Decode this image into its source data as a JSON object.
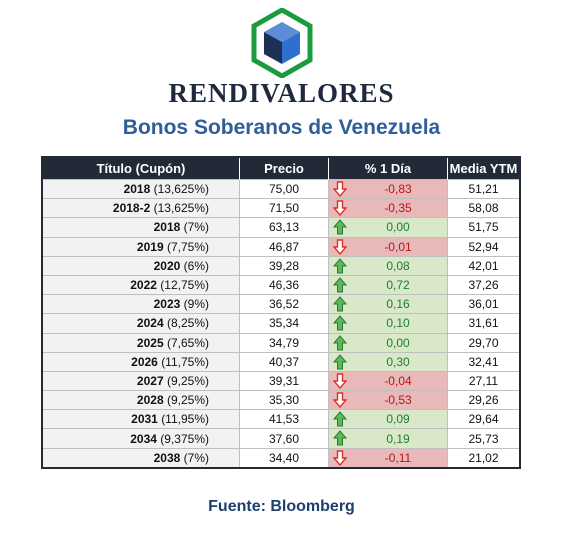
{
  "brand": "RENDIVALORES",
  "title": "Bonos Soberanos de Venezuela",
  "source": "Fuente: Bloomberg",
  "colors": {
    "header_bg": "#222a38",
    "title": "#2e5f99",
    "positive_bg": "#d8e8c8",
    "positive_text": "#1e7d32",
    "negative_bg": "#e9b9b9",
    "negative_text": "#b01919"
  },
  "icons": {
    "logo": "cube-hexagon-logo",
    "up": "arrow-up-icon",
    "down": "arrow-down-icon"
  },
  "table": {
    "headers": [
      "Título (Cupón)",
      "Precio",
      "% 1 Día",
      "Media YTM"
    ],
    "rows": [
      {
        "year": "2018",
        "coupon": "(13,625%)",
        "precio": "75,00",
        "cambio": "-0,83",
        "dir": "down",
        "ytm": "51,21"
      },
      {
        "year": "2018-2",
        "coupon": "(13,625%)",
        "precio": "71,50",
        "cambio": "-0,35",
        "dir": "down",
        "ytm": "58,08"
      },
      {
        "year": "2018",
        "coupon": "(7%)",
        "precio": "63,13",
        "cambio": "0,00",
        "dir": "up",
        "ytm": "51,75"
      },
      {
        "year": "2019",
        "coupon": "(7,75%)",
        "precio": "46,87",
        "cambio": "-0,01",
        "dir": "down",
        "ytm": "52,94"
      },
      {
        "year": "2020",
        "coupon": "(6%)",
        "precio": "39,28",
        "cambio": "0,08",
        "dir": "up",
        "ytm": "42,01"
      },
      {
        "year": "2022",
        "coupon": "(12,75%)",
        "precio": "46,36",
        "cambio": "0,72",
        "dir": "up",
        "ytm": "37,26"
      },
      {
        "year": "2023",
        "coupon": "(9%)",
        "precio": "36,52",
        "cambio": "0,16",
        "dir": "up",
        "ytm": "36,01"
      },
      {
        "year": "2024",
        "coupon": "(8,25%)",
        "precio": "35,34",
        "cambio": "0,10",
        "dir": "up",
        "ytm": "31,61"
      },
      {
        "year": "2025",
        "coupon": "(7,65%)",
        "precio": "34,79",
        "cambio": "0,00",
        "dir": "up",
        "ytm": "29,70"
      },
      {
        "year": "2026",
        "coupon": "(11,75%)",
        "precio": "40,37",
        "cambio": "0,30",
        "dir": "up",
        "ytm": "32,41"
      },
      {
        "year": "2027",
        "coupon": "(9,25%)",
        "precio": "39,31",
        "cambio": "-0,04",
        "dir": "down",
        "ytm": "27,11"
      },
      {
        "year": "2028",
        "coupon": "(9,25%)",
        "precio": "35,30",
        "cambio": "-0,53",
        "dir": "down",
        "ytm": "29,26"
      },
      {
        "year": "2031",
        "coupon": "(11,95%)",
        "precio": "41,53",
        "cambio": "0,09",
        "dir": "up",
        "ytm": "29,64"
      },
      {
        "year": "2034",
        "coupon": "(9,375%)",
        "precio": "37,60",
        "cambio": "0,19",
        "dir": "up",
        "ytm": "25,73"
      },
      {
        "year": "2038",
        "coupon": "(7%)",
        "precio": "34,40",
        "cambio": "-0,11",
        "dir": "down",
        "ytm": "21,02"
      }
    ]
  }
}
